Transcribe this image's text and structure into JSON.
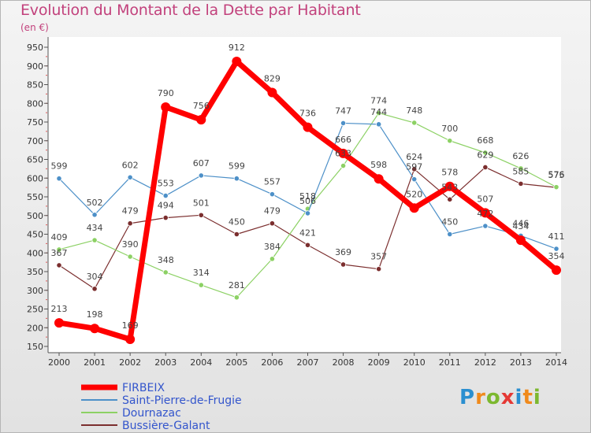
{
  "chart_data": {
    "type": "line",
    "title": "Evolution du Montant de la Dette par Habitant",
    "unit_label": "(en €)",
    "x": [
      "2000",
      "2001",
      "2002",
      "2003",
      "2004",
      "2005",
      "2006",
      "2007",
      "2008",
      "2009",
      "2010",
      "2011",
      "2012",
      "2013",
      "2014"
    ],
    "y_ticks": [
      150,
      200,
      250,
      300,
      350,
      400,
      450,
      500,
      550,
      600,
      650,
      700,
      750,
      800,
      850,
      900,
      950
    ],
    "ylim": [
      150,
      950
    ],
    "grid": false,
    "legend_position": "bottom-left",
    "series": [
      {
        "name": "FIRBEIX",
        "color": "#ff0000",
        "values": [
          213,
          198,
          169,
          790,
          756,
          912,
          829,
          736,
          666,
          598,
          520,
          578,
          507,
          434,
          354
        ]
      },
      {
        "name": "Saint-Pierre-de-Frugie",
        "color": "#4d90c8",
        "values": [
          599,
          502,
          602,
          553,
          607,
          599,
          557,
          506,
          747,
          744,
          597,
          450,
          472,
          446,
          411
        ]
      },
      {
        "name": "Dournazac",
        "color": "#8cd164",
        "values": [
          409,
          434,
          390,
          348,
          314,
          281,
          384,
          518,
          633,
          774,
          748,
          700,
          668,
          626,
          576
        ]
      },
      {
        "name": "Bussière-Galant",
        "color": "#7b2e2e",
        "values": [
          367,
          304,
          479,
          494,
          501,
          450,
          479,
          421,
          369,
          357,
          624,
          543,
          629,
          585,
          575
        ]
      }
    ]
  },
  "logo_letters": [
    "P",
    "r",
    "o",
    "x",
    "i",
    "t",
    "i"
  ]
}
